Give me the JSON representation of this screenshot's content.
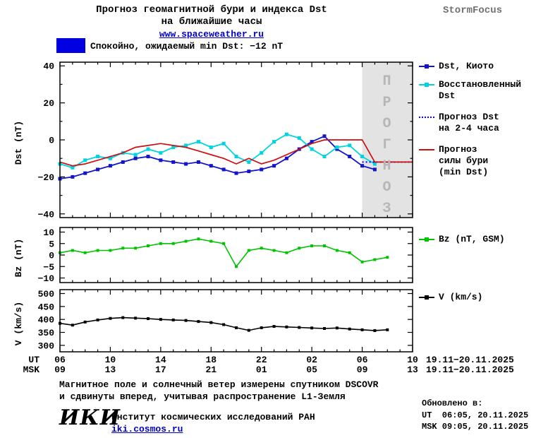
{
  "header": {
    "title_line1": "Прогноз геомагнитной бури и индекса Dst",
    "title_line2": "на ближайшие часы",
    "link": "www.spaceweather.ru",
    "brand": "StormFocus"
  },
  "banner": {
    "label": "Спокойно, ожидаемый min Dst: −12 nT",
    "swatch_color": "#0000e0"
  },
  "forecast_overlay": {
    "label": "ПРОГНОЗ"
  },
  "legend": {
    "kyoto": "Dst, Киото",
    "restored": [
      "Восстановленный",
      "Dst"
    ],
    "forecast_dst": [
      "Прогноз Dst",
      "на 2-4 часа"
    ],
    "storm": [
      "Прогноз",
      "силы бури",
      "(min Dst)"
    ],
    "bz": "Bz (nT, GSM)",
    "v": "V (km/s)"
  },
  "xaxis": {
    "ut_label": "UT",
    "msk_label": "MSK",
    "ut_ticks": [
      "06",
      "10",
      "14",
      "18",
      "22",
      "02",
      "06",
      "10"
    ],
    "msk_ticks": [
      "09",
      "13",
      "17",
      "21",
      "01",
      "05",
      "09",
      "13"
    ],
    "ut_date": "19.11−20.11.2025",
    "msk_date": "19.11−20.11.2025"
  },
  "chart_data": [
    {
      "id": "dst",
      "type": "line",
      "ylabel": "Dst (nT)",
      "ylim": [
        -42,
        42
      ],
      "yticks": [
        -40,
        -20,
        0,
        20,
        40
      ],
      "yminor": 10,
      "xlim": [
        0,
        28
      ],
      "xticks": [
        0,
        4,
        8,
        12,
        16,
        20,
        24,
        28
      ],
      "forecast_region": {
        "x_start": 24,
        "x_end": 28,
        "color": "#e3e3e3"
      },
      "series": [
        {
          "name": "Dst, Киото",
          "color": "#1414cd",
          "marker": "square",
          "marker_size": 5,
          "width": 1.8,
          "x_start": 0,
          "x_step": 1,
          "values": [
            -21,
            -20,
            -18,
            -16,
            -14,
            -12,
            -10,
            -9,
            -11,
            -12,
            -13,
            -12,
            -14,
            -16,
            -18,
            -17,
            -16,
            -14,
            -10,
            -5,
            -1,
            2,
            -5,
            -9,
            -14,
            -16
          ]
        },
        {
          "name": "Восстановленный Dst",
          "color": "#00d4e0",
          "marker": "square",
          "marker_size": 5,
          "width": 1.8,
          "x_start": 0,
          "x_step": 1,
          "values": [
            -13,
            -15,
            -11,
            -9,
            -10,
            -7,
            -8,
            -5,
            -7,
            -4,
            -3,
            -1,
            -4,
            -2,
            -9,
            -12,
            -7,
            -1,
            3,
            1,
            -5,
            -9,
            -4,
            -3,
            -9,
            -13
          ]
        },
        {
          "name": "Прогноз Dst на 2-4 часа",
          "color": "#0000ff",
          "dash": "dotted",
          "width": 2,
          "x_start": 24,
          "x_step": 1,
          "values": [
            -12,
            -12,
            -12,
            -12,
            -12
          ]
        },
        {
          "name": "Прогноз силы бури (min Dst)",
          "color": "#cd0f0f",
          "width": 1.7,
          "x_start": 0,
          "x_step": 1,
          "values": [
            -12,
            -14,
            -13,
            -11,
            -9,
            -7,
            -4,
            -3,
            -2,
            -3,
            -4,
            -6,
            -8,
            -10,
            -13,
            -10,
            -13,
            -11,
            -8,
            -5,
            -2,
            0,
            0,
            0,
            0,
            -12,
            -12,
            -12,
            -12
          ]
        }
      ]
    },
    {
      "id": "bz",
      "type": "line",
      "ylabel": "Bz (nT)",
      "ylim": [
        -12,
        12
      ],
      "yticks": [
        -10,
        -5,
        0,
        5,
        10
      ],
      "xlim": [
        0,
        28
      ],
      "xticks": [
        0,
        4,
        8,
        12,
        16,
        20,
        24,
        28
      ],
      "series": [
        {
          "name": "Bz (nT, GSM)",
          "color": "#00c400",
          "marker": "square",
          "marker_size": 4,
          "width": 1.6,
          "x_start": 0,
          "x_step": 1,
          "values": [
            1,
            2,
            1,
            2,
            2,
            3,
            3,
            4,
            5,
            5,
            6,
            7,
            6,
            5,
            -5,
            2,
            3,
            2,
            1,
            3,
            4,
            4,
            2,
            1,
            -3,
            -2,
            -1
          ]
        }
      ]
    },
    {
      "id": "v",
      "type": "line",
      "ylabel": "V (km/s)",
      "ylim": [
        275,
        515
      ],
      "yticks": [
        300,
        350,
        400,
        450,
        500
      ],
      "xlim": [
        0,
        28
      ],
      "xticks": [
        0,
        4,
        8,
        12,
        16,
        20,
        24,
        28
      ],
      "series": [
        {
          "name": "V (km/s)",
          "color": "#000000",
          "marker": "square",
          "marker_size": 4,
          "width": 1.6,
          "x_start": 0,
          "x_step": 1,
          "values": [
            385,
            378,
            390,
            398,
            404,
            407,
            405,
            403,
            400,
            398,
            396,
            392,
            388,
            380,
            368,
            358,
            368,
            373,
            371,
            369,
            367,
            365,
            367,
            363,
            360,
            357,
            360
          ]
        }
      ]
    }
  ],
  "footer": {
    "note_line1": "Магнитное поле и солнечный ветер измерены спутником DSCOVR",
    "note_line2": "и сдвинуты вперед, учитывая распространение L1-Земля",
    "updated_label": "Обновлено в:",
    "updated_ut": "UT  06:05, 20.11.2025",
    "updated_msk": "MSK 09:05, 20.11.2025",
    "logo": "ИКИ",
    "institute": "Институт космических исследований РАН",
    "site": "iki.cosmos.ru"
  }
}
